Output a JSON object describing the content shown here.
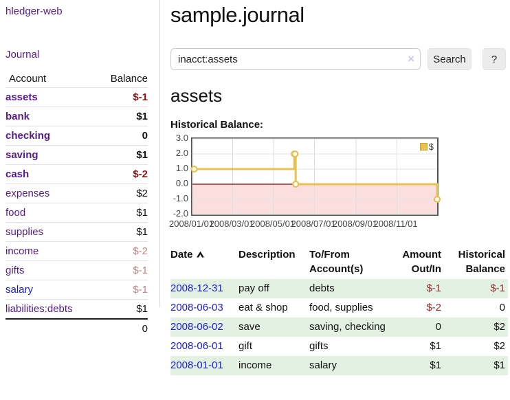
{
  "app": {
    "brand": "hledger-web",
    "nav_journal": "Journal"
  },
  "sidebar": {
    "header": {
      "account": "Account",
      "balance": "Balance"
    },
    "rows": [
      {
        "account": "assets",
        "balance": "$-1",
        "level": 1,
        "in_account": true
      },
      {
        "account": "bank",
        "balance": "$1",
        "level": 2,
        "in_account": true
      },
      {
        "account": "checking",
        "balance": "0",
        "level": 3,
        "in_account": true
      },
      {
        "account": "saving",
        "balance": "$1",
        "level": 3,
        "in_account": true
      },
      {
        "account": "cash",
        "balance": "$-2",
        "level": 2,
        "in_account": true
      },
      {
        "account": "expenses",
        "balance": "$2",
        "level": 1,
        "in_account": false
      },
      {
        "account": "food",
        "balance": "$1",
        "level": 2,
        "in_account": false
      },
      {
        "account": "supplies",
        "balance": "$1",
        "level": 2,
        "in_account": false
      },
      {
        "account": "income",
        "balance": "$-2",
        "level": 1,
        "in_account": false
      },
      {
        "account": "gifts",
        "balance": "$-1",
        "level": 2,
        "in_account": false
      },
      {
        "account": "salary",
        "balance": "$-1",
        "level": 2,
        "in_account": false,
        "unvisited": true
      },
      {
        "account": "liabilities:debts",
        "balance": "$1",
        "level": 1,
        "in_account": false
      }
    ],
    "total": "0"
  },
  "main": {
    "title": "sample.journal",
    "search": {
      "value": "inacct:assets",
      "clear_icon": "×",
      "button": "Search",
      "help": "?"
    },
    "account_heading": "assets",
    "chart_label": "Historical Balance:"
  },
  "chart_data": {
    "type": "line",
    "title": "Historical Balance",
    "step": true,
    "series": [
      {
        "name": "$",
        "color": "#e8c250",
        "points": [
          {
            "x": "2008-01-01",
            "y": 1
          },
          {
            "x": "2008-06-01",
            "y": 2
          },
          {
            "x": "2008-06-02",
            "y": 2
          },
          {
            "x": "2008-06-03",
            "y": 0
          },
          {
            "x": "2008-12-31",
            "y": -1
          }
        ]
      }
    ],
    "ylim": [
      -2,
      3
    ],
    "yticks": [
      "3.0",
      "2.0",
      "1.0",
      "0.0",
      "-1.0",
      "-2.0"
    ],
    "xticks": [
      "2008/01/01",
      "2008/03/01",
      "2008/05/01",
      "2008/07/01",
      "2008/09/01",
      "2008/11/01"
    ],
    "grid": true,
    "legend": {
      "label": "$",
      "position": "top-right"
    },
    "negative_region_fill": "#fbdfdf",
    "zero_line_color": "#8b0000"
  },
  "register": {
    "headers": {
      "date": "Date",
      "sort_indicator": "up",
      "description": "Description",
      "accounts": "To/From Account(s)",
      "amount": "Amount Out/In",
      "balance": "Historical Balance"
    },
    "rows": [
      {
        "date": "2008-12-31",
        "description": "pay off",
        "accounts": "debts",
        "amount": "$-1",
        "balance": "$-1"
      },
      {
        "date": "2008-06-03",
        "description": "eat & shop",
        "accounts": "food, supplies",
        "amount": "$-2",
        "balance": "0"
      },
      {
        "date": "2008-06-02",
        "description": "save",
        "accounts": "saving, checking",
        "amount": "0",
        "balance": "$2"
      },
      {
        "date": "2008-06-01",
        "description": "gift",
        "accounts": "gifts",
        "amount": "$1",
        "balance": "$2"
      },
      {
        "date": "2008-01-01",
        "description": "income",
        "accounts": "salary",
        "amount": "$1",
        "balance": "$1"
      }
    ]
  }
}
